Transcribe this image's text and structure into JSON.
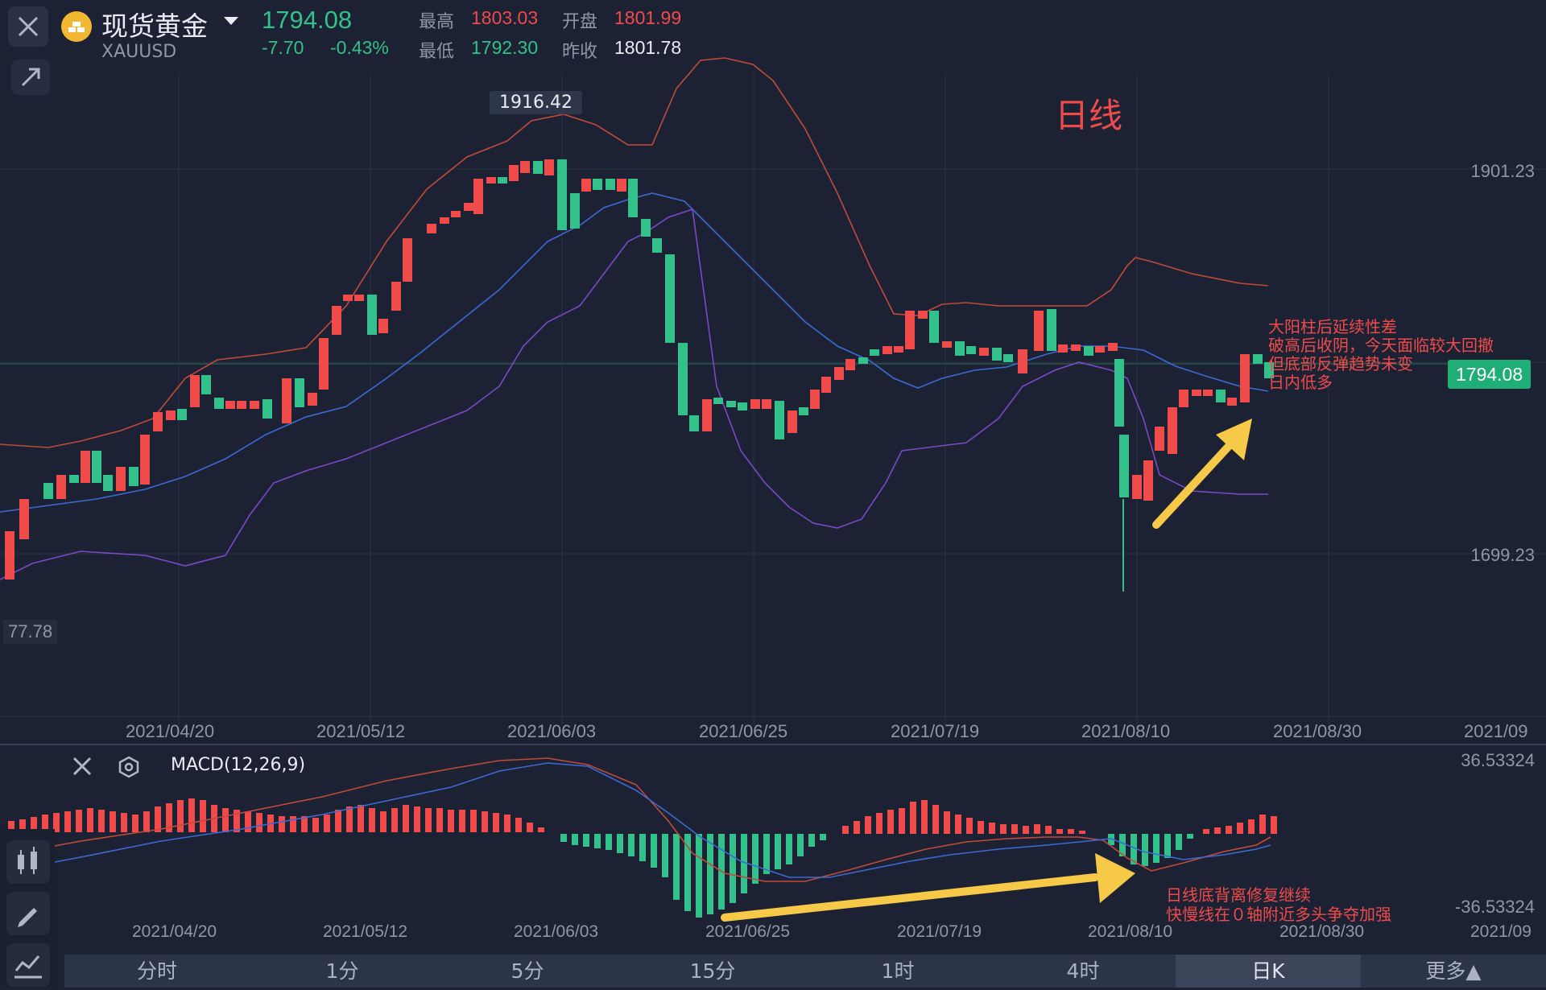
{
  "header": {
    "name": "现货黄金",
    "code": "XAUUSD",
    "price": "1794.08",
    "change": "-7.70",
    "change_pct": "-0.43%",
    "high_label": "最高",
    "high": "1803.03",
    "open_label": "开盘",
    "open": "1801.99",
    "low_label": "最低",
    "low": "1792.30",
    "prev_label": "昨收",
    "prev": "1801.78"
  },
  "chart": {
    "period_label": "日线",
    "peak_label": "1916.42",
    "axis_top": "1901.23",
    "axis_mid_hidden": "1830.23",
    "axis_bottom": "1699.23",
    "left_edge_label": "77.78",
    "current_price": "1794.08",
    "dates": [
      "2021/04/20",
      "2021/05/12",
      "2021/06/03",
      "2021/06/25",
      "2021/07/19",
      "2021/08/10",
      "2021/08/30",
      "2021/09"
    ],
    "annotation": [
      "大阳柱后延续性差",
      "破高后收阴，今天面临较大回撤",
      "但底部反弹趋势未变",
      "日内低多"
    ]
  },
  "macd": {
    "label": "MACD(12,26,9)",
    "max": "36.53324",
    "min": "-36.53324",
    "annotation": [
      "日线底背离修复继续",
      "快慢线在０轴附近多头争夺加强"
    ]
  },
  "tabs": [
    "分时",
    "1分",
    "5分",
    "15分",
    "1时",
    "4时",
    "日K",
    "更多▲"
  ],
  "colors": {
    "up": "#ef4b4b",
    "down": "#33c08a",
    "background": "#1c2233",
    "arrow": "#f7c948"
  }
}
